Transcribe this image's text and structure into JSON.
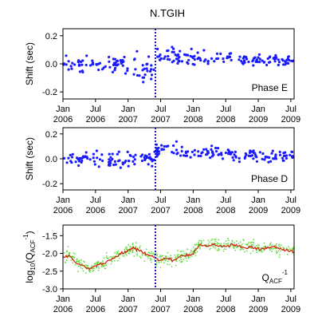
{
  "chart_data": [
    {
      "type": "scatter",
      "title": "N.TGIH",
      "ylabel": "Shift (sec)",
      "annotation": "Phase E",
      "ylim": [
        -0.25,
        0.25
      ],
      "yticks": [
        -0.2,
        0.0,
        0.2
      ],
      "ytick_labels": [
        "-0.2",
        "0.0",
        "0.2"
      ],
      "xlim": [
        2006.0,
        2009.55
      ],
      "xticks": [
        2006.0,
        2006.5,
        2007.0,
        2007.5,
        2008.0,
        2008.5,
        2009.0,
        2009.5
      ],
      "xtick_labels": [
        [
          "Jan",
          "2006"
        ],
        [
          "Jul",
          "2006"
        ],
        [
          "Jan",
          "2007"
        ],
        [
          "Jul",
          "2007"
        ],
        [
          "Jan",
          "2008"
        ],
        [
          "Jul",
          "2008"
        ],
        [
          "Jan",
          "2009"
        ],
        [
          "Jul",
          "2009"
        ]
      ],
      "vline_x": 2007.42,
      "series": [
        {
          "color": "#1a1aff",
          "segments": [
            {
              "x0": 2006.0,
              "x1": 2006.9,
              "mean": 0.0,
              "spread": 0.05
            },
            {
              "x0": 2006.9,
              "x1": 2007.42,
              "mean": -0.02,
              "spread": 0.08
            },
            {
              "x0": 2007.42,
              "x1": 2007.7,
              "mean": 0.06,
              "spread": 0.06
            },
            {
              "x0": 2007.7,
              "x1": 2008.6,
              "mean": 0.04,
              "spread": 0.045
            },
            {
              "x0": 2008.6,
              "x1": 2009.55,
              "mean": 0.03,
              "spread": 0.035
            }
          ],
          "count": 230
        }
      ]
    },
    {
      "type": "scatter",
      "ylabel": "Shift (sec)",
      "annotation": "Phase D",
      "ylim": [
        -0.25,
        0.25
      ],
      "yticks": [
        -0.2,
        0.0,
        0.2
      ],
      "ytick_labels": [
        "-0.2",
        "0.0",
        "0.2"
      ],
      "xlim": [
        2006.0,
        2009.55
      ],
      "xticks": [
        2006.0,
        2006.5,
        2007.0,
        2007.5,
        2008.0,
        2008.5,
        2009.0,
        2009.5
      ],
      "xtick_labels": [
        [
          "Jan",
          "2006"
        ],
        [
          "Jul",
          "2006"
        ],
        [
          "Jan",
          "2007"
        ],
        [
          "Jul",
          "2007"
        ],
        [
          "Jan",
          "2008"
        ],
        [
          "Jul",
          "2008"
        ],
        [
          "Jan",
          "2009"
        ],
        [
          "Jul",
          "2009"
        ]
      ],
      "vline_x": 2007.42,
      "series": [
        {
          "color": "#1a1aff",
          "segments": [
            {
              "x0": 2006.0,
              "x1": 2006.5,
              "mean": 0.0,
              "spread": 0.04
            },
            {
              "x0": 2006.5,
              "x1": 2007.42,
              "mean": -0.01,
              "spread": 0.05
            },
            {
              "x0": 2007.42,
              "x1": 2007.8,
              "mean": 0.07,
              "spread": 0.05
            },
            {
              "x0": 2007.8,
              "x1": 2008.6,
              "mean": 0.05,
              "spread": 0.04
            },
            {
              "x0": 2008.6,
              "x1": 2009.55,
              "mean": 0.02,
              "spread": 0.04
            }
          ],
          "count": 230
        }
      ]
    },
    {
      "type": "scatter",
      "ylabel": "log10(QACF-1)",
      "ylabel_parts": {
        "prefix": "log",
        "sub1": "10",
        "mid": "(Q",
        "sub2": "ACF",
        "sup": "-1",
        "suffix": ")"
      },
      "annotation": "QACF-1",
      "annotation_parts": {
        "main": "Q",
        "sub": "ACF",
        "sup": "-1"
      },
      "ylim": [
        -3.0,
        -1.2
      ],
      "yticks": [
        -3.0,
        -2.5,
        -2.0,
        -1.5
      ],
      "ytick_labels": [
        "-3.0",
        "-2.5",
        "-2.0",
        "-1.5"
      ],
      "xlim": [
        2006.0,
        2009.55
      ],
      "xticks": [
        2006.0,
        2006.5,
        2007.0,
        2007.5,
        2008.0,
        2008.5,
        2009.0,
        2009.5
      ],
      "xtick_labels": [
        [
          "Jan",
          "2006"
        ],
        [
          "Jul",
          "2006"
        ],
        [
          "Jan",
          "2007"
        ],
        [
          "Jul",
          "2007"
        ],
        [
          "Jan",
          "2008"
        ],
        [
          "Jul",
          "2008"
        ],
        [
          "Jan",
          "2009"
        ],
        [
          "Jul",
          "2009"
        ]
      ],
      "vline_x": 2007.42,
      "points_color": "#66dd44",
      "points_count": 520,
      "points_spread": 0.16,
      "line_color": "#cc2200",
      "line": {
        "x": [
          2006.0,
          2006.1,
          2006.2,
          2006.3,
          2006.4,
          2006.5,
          2006.6,
          2006.7,
          2006.8,
          2006.9,
          2007.0,
          2007.1,
          2007.2,
          2007.3,
          2007.42,
          2007.5,
          2007.6,
          2007.7,
          2007.8,
          2007.9,
          2008.0,
          2008.1,
          2008.2,
          2008.3,
          2008.4,
          2008.5,
          2008.6,
          2008.7,
          2008.8,
          2008.9,
          2009.0,
          2009.1,
          2009.2,
          2009.3,
          2009.4,
          2009.55
        ],
        "y": [
          -2.1,
          -2.05,
          -2.25,
          -2.35,
          -2.45,
          -2.35,
          -2.3,
          -2.2,
          -2.1,
          -2.0,
          -1.9,
          -1.85,
          -1.95,
          -2.05,
          -2.1,
          -2.2,
          -2.15,
          -2.2,
          -2.1,
          -2.05,
          -2.0,
          -1.75,
          -1.8,
          -1.75,
          -1.8,
          -1.8,
          -1.75,
          -1.8,
          -1.85,
          -1.8,
          -1.9,
          -1.85,
          -1.8,
          -1.85,
          -1.9,
          -1.95
        ]
      }
    }
  ]
}
